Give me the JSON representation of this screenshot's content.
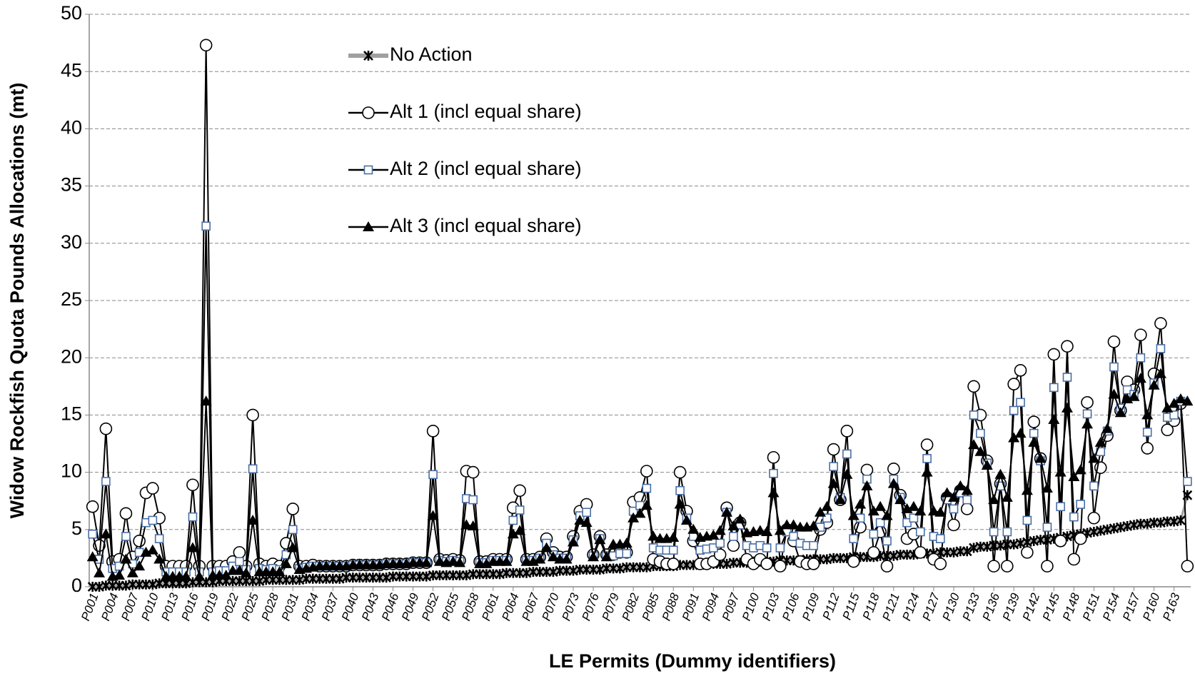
{
  "chart_data": {
    "type": "line",
    "y_label": "Widow Rockfish Quota Pounds Allocations (mt)",
    "x_label": "LE Permits (Dummy identifiers)",
    "ylim": [
      0,
      50
    ],
    "yticks": [
      0,
      5,
      10,
      15,
      20,
      25,
      30,
      35,
      40,
      45,
      50
    ],
    "grid": true,
    "categories": [
      "P001",
      null,
      null,
      "P004",
      null,
      null,
      "P007",
      null,
      null,
      "P010",
      null,
      null,
      "P013",
      null,
      null,
      "P016",
      null,
      null,
      "P019",
      null,
      null,
      "P022",
      null,
      null,
      "P025",
      null,
      null,
      "P028",
      null,
      null,
      "P031",
      null,
      null,
      "P034",
      null,
      null,
      "P037",
      null,
      null,
      "P040",
      null,
      null,
      "P043",
      null,
      null,
      "P046",
      null,
      null,
      "P049",
      null,
      null,
      "P052",
      null,
      null,
      "P055",
      null,
      null,
      "P058",
      null,
      null,
      "P061",
      null,
      null,
      "P064",
      null,
      null,
      "P067",
      null,
      null,
      "P070",
      null,
      null,
      "P073",
      null,
      null,
      "P076",
      null,
      null,
      "P079",
      null,
      null,
      "P082",
      null,
      null,
      "P085",
      null,
      null,
      "P088",
      null,
      null,
      "P091",
      null,
      null,
      "P094",
      null,
      null,
      "P097",
      null,
      null,
      "P100",
      null,
      null,
      "P103",
      null,
      null,
      "P106",
      null,
      null,
      "P109",
      null,
      null,
      "P112",
      null,
      null,
      "P115",
      null,
      null,
      "P118",
      null,
      null,
      "P121",
      null,
      null,
      "P124",
      null,
      null,
      "P127",
      null,
      null,
      "P130",
      null,
      null,
      "P133",
      null,
      null,
      "P136",
      null,
      null,
      "P139",
      null,
      null,
      "P142",
      null,
      null,
      "P145",
      null,
      null,
      "P148",
      null,
      null,
      "P151",
      null,
      null,
      "P154",
      null,
      null,
      "P157",
      null,
      null,
      "P160",
      null,
      null,
      "P163",
      null,
      null
    ],
    "series": [
      {
        "name": "No Action",
        "marker": "star",
        "color": "#000000",
        "line_color": "#a0a0a0",
        "values": [
          0.0,
          0.0,
          0.1,
          0.1,
          0.1,
          0.1,
          0.2,
          0.2,
          0.2,
          0.2,
          0.3,
          0.3,
          0.3,
          0.3,
          0.3,
          0.4,
          0.4,
          0.4,
          0.4,
          0.5,
          0.5,
          0.5,
          0.5,
          0.5,
          0.5,
          0.5,
          0.6,
          0.6,
          0.6,
          0.6,
          0.6,
          0.6,
          0.7,
          0.7,
          0.7,
          0.7,
          0.7,
          0.7,
          0.8,
          0.8,
          0.8,
          0.8,
          0.8,
          0.8,
          0.8,
          0.9,
          0.9,
          0.9,
          0.9,
          0.9,
          0.9,
          1.0,
          1.0,
          1.0,
          1.0,
          1.0,
          1.0,
          1.1,
          1.1,
          1.1,
          1.1,
          1.1,
          1.2,
          1.2,
          1.2,
          1.2,
          1.3,
          1.3,
          1.3,
          1.3,
          1.4,
          1.4,
          1.4,
          1.5,
          1.5,
          1.5,
          1.5,
          1.6,
          1.6,
          1.6,
          1.7,
          1.7,
          1.7,
          1.7,
          1.8,
          1.8,
          1.8,
          1.8,
          1.9,
          1.9,
          1.9,
          1.9,
          2.0,
          2.0,
          2.0,
          2.0,
          2.1,
          2.1,
          2.1,
          2.2,
          2.2,
          2.2,
          2.2,
          2.3,
          2.3,
          2.3,
          2.3,
          2.4,
          2.4,
          2.4,
          2.4,
          2.5,
          2.5,
          2.5,
          2.6,
          2.6,
          2.6,
          2.6,
          2.7,
          2.7,
          2.7,
          2.8,
          2.8,
          2.8,
          2.9,
          2.9,
          2.9,
          3.0,
          3.0,
          3.0,
          3.1,
          3.1,
          3.4,
          3.5,
          3.5,
          3.6,
          3.6,
          3.7,
          3.7,
          3.8,
          3.9,
          4.0,
          4.1,
          4.1,
          4.2,
          4.3,
          4.4,
          4.5,
          4.6,
          4.7,
          4.8,
          4.9,
          5.0,
          5.1,
          5.2,
          5.3,
          5.4,
          5.5,
          5.5,
          5.6,
          5.6,
          5.7,
          5.7,
          5.8,
          8.0
        ]
      },
      {
        "name": "Alt 1 (incl equal share)",
        "marker": "circle",
        "color": "#000000",
        "line_color": "#000000",
        "values": [
          7.0,
          3.6,
          13.8,
          2.2,
          2.4,
          6.4,
          2.6,
          4.0,
          8.2,
          8.6,
          6.0,
          1.8,
          1.8,
          1.8,
          1.8,
          8.9,
          1.8,
          47.3,
          1.8,
          1.8,
          1.8,
          2.2,
          3.0,
          1.8,
          15.0,
          2.0,
          1.8,
          2.0,
          1.8,
          3.8,
          6.8,
          1.8,
          1.8,
          1.9,
          1.8,
          1.8,
          1.8,
          1.8,
          1.8,
          1.9,
          1.9,
          1.9,
          1.9,
          1.9,
          2.0,
          2.0,
          2.0,
          2.0,
          2.1,
          2.1,
          2.1,
          13.6,
          2.4,
          2.3,
          2.4,
          2.3,
          10.1,
          10.0,
          2.2,
          2.2,
          2.4,
          2.4,
          2.4,
          6.9,
          8.4,
          2.4,
          2.4,
          2.6,
          4.2,
          3.0,
          2.6,
          2.6,
          4.4,
          6.6,
          7.2,
          2.8,
          4.4,
          2.8,
          2.8,
          3.0,
          3.0,
          7.4,
          7.8,
          10.1,
          2.4,
          2.2,
          2.0,
          2.0,
          10.0,
          6.6,
          4.0,
          2.0,
          2.0,
          2.2,
          2.8,
          6.9,
          3.6,
          5.6,
          2.4,
          2.0,
          2.4,
          2.0,
          11.3,
          1.8,
          5.0,
          4.0,
          2.2,
          2.0,
          2.0,
          5.0,
          5.6,
          12.0,
          7.6,
          13.6,
          2.2,
          5.2,
          10.2,
          3.0,
          4.8,
          1.8,
          10.3,
          8.0,
          4.2,
          4.6,
          3.0,
          12.4,
          2.4,
          2.0,
          7.8,
          5.4,
          8.4,
          6.8,
          17.5,
          15.0,
          11.0,
          1.8,
          9.0,
          1.8,
          17.7,
          18.9,
          3.0,
          14.4,
          11.2,
          1.8,
          20.3,
          4.0,
          21.0,
          2.4,
          4.2,
          16.1,
          6.0,
          10.4,
          13.2,
          21.4,
          15.4,
          17.9,
          17.2,
          22.0,
          12.1,
          18.6,
          23.0,
          13.7,
          14.5,
          16.0,
          1.8
        ]
      },
      {
        "name": "Alt 2 (incl equal share)",
        "marker": "square",
        "color": "#4a6fa5",
        "line_color": "#000000",
        "values": [
          4.6,
          2.4,
          9.2,
          1.6,
          1.8,
          4.4,
          2.0,
          3.0,
          5.6,
          5.8,
          4.2,
          1.3,
          1.3,
          1.3,
          1.3,
          6.1,
          1.3,
          31.5,
          1.3,
          1.4,
          1.4,
          1.8,
          2.2,
          1.5,
          10.3,
          1.6,
          1.5,
          1.6,
          1.5,
          2.8,
          5.0,
          1.6,
          1.7,
          1.8,
          1.8,
          1.8,
          1.8,
          1.8,
          1.8,
          1.9,
          1.9,
          1.9,
          1.9,
          1.9,
          2.0,
          2.0,
          2.0,
          2.0,
          2.1,
          2.1,
          2.1,
          9.8,
          2.3,
          2.2,
          2.3,
          2.2,
          7.7,
          7.6,
          2.1,
          2.1,
          2.3,
          2.3,
          2.3,
          5.8,
          6.7,
          2.3,
          2.3,
          2.5,
          3.8,
          2.8,
          2.5,
          2.5,
          4.1,
          6.2,
          6.5,
          2.7,
          4.2,
          2.7,
          2.7,
          2.9,
          2.9,
          6.6,
          7.1,
          8.6,
          3.4,
          3.2,
          3.2,
          3.2,
          8.4,
          6.0,
          4.4,
          3.2,
          3.3,
          3.4,
          3.8,
          6.5,
          4.4,
          5.4,
          3.6,
          3.4,
          3.6,
          3.4,
          9.9,
          3.4,
          4.8,
          4.4,
          3.8,
          3.6,
          3.6,
          5.2,
          6.0,
          10.5,
          7.8,
          11.6,
          4.2,
          6.0,
          9.4,
          4.6,
          5.6,
          4.0,
          9.4,
          7.8,
          5.6,
          6.0,
          4.8,
          11.2,
          4.4,
          4.2,
          7.6,
          6.8,
          8.2,
          7.6,
          15.0,
          13.4,
          10.8,
          4.8,
          8.8,
          4.8,
          15.4,
          16.1,
          5.8,
          13.4,
          11.0,
          5.2,
          17.4,
          7.0,
          18.3,
          6.1,
          7.2,
          15.1,
          8.8,
          11.8,
          13.6,
          19.2,
          15.6,
          17.2,
          16.8,
          20.0,
          13.5,
          17.8,
          20.8,
          14.8,
          15.0,
          16.2,
          9.2
        ]
      },
      {
        "name": "Alt 3 (incl equal share)",
        "marker": "triangle",
        "color": "#000000",
        "line_color": "#000000",
        "values": [
          2.6,
          1.2,
          4.6,
          0.9,
          1.0,
          2.4,
          1.2,
          1.8,
          3.0,
          3.2,
          2.4,
          0.9,
          0.9,
          0.9,
          0.9,
          3.4,
          0.9,
          16.2,
          1.0,
          1.0,
          1.0,
          1.4,
          1.4,
          1.2,
          5.8,
          1.3,
          1.3,
          1.3,
          1.3,
          2.0,
          3.4,
          1.5,
          1.6,
          1.7,
          1.8,
          1.8,
          1.8,
          1.8,
          1.8,
          1.9,
          1.9,
          1.9,
          1.9,
          1.9,
          2.0,
          2.0,
          2.0,
          2.0,
          2.1,
          2.1,
          2.1,
          6.2,
          2.2,
          2.1,
          2.2,
          2.1,
          5.4,
          5.3,
          2.0,
          2.0,
          2.2,
          2.2,
          2.2,
          4.6,
          4.9,
          2.2,
          2.2,
          2.4,
          3.4,
          2.6,
          2.4,
          2.4,
          3.9,
          5.8,
          5.6,
          2.6,
          4.1,
          2.6,
          3.7,
          3.7,
          3.8,
          6.0,
          6.4,
          7.1,
          4.4,
          4.2,
          4.2,
          4.3,
          7.2,
          5.8,
          5.0,
          4.3,
          4.4,
          4.5,
          4.9,
          6.5,
          5.3,
          5.9,
          4.7,
          4.8,
          4.9,
          4.8,
          8.2,
          4.9,
          5.4,
          5.4,
          5.2,
          5.2,
          5.3,
          6.5,
          7.0,
          9.0,
          7.6,
          9.8,
          6.2,
          7.2,
          8.8,
          6.6,
          7.0,
          6.2,
          9.0,
          7.6,
          6.8,
          7.0,
          6.6,
          10.0,
          6.6,
          6.5,
          8.2,
          7.8,
          8.8,
          8.4,
          12.4,
          11.8,
          10.6,
          7.6,
          9.8,
          7.8,
          13.0,
          13.4,
          8.4,
          12.6,
          11.2,
          8.6,
          14.6,
          10.0,
          15.6,
          9.6,
          10.2,
          14.2,
          11.2,
          12.6,
          13.8,
          16.8,
          15.2,
          16.4,
          16.6,
          18.2,
          15.0,
          17.6,
          18.6,
          15.6,
          16.0,
          16.4,
          16.2
        ]
      }
    ]
  }
}
